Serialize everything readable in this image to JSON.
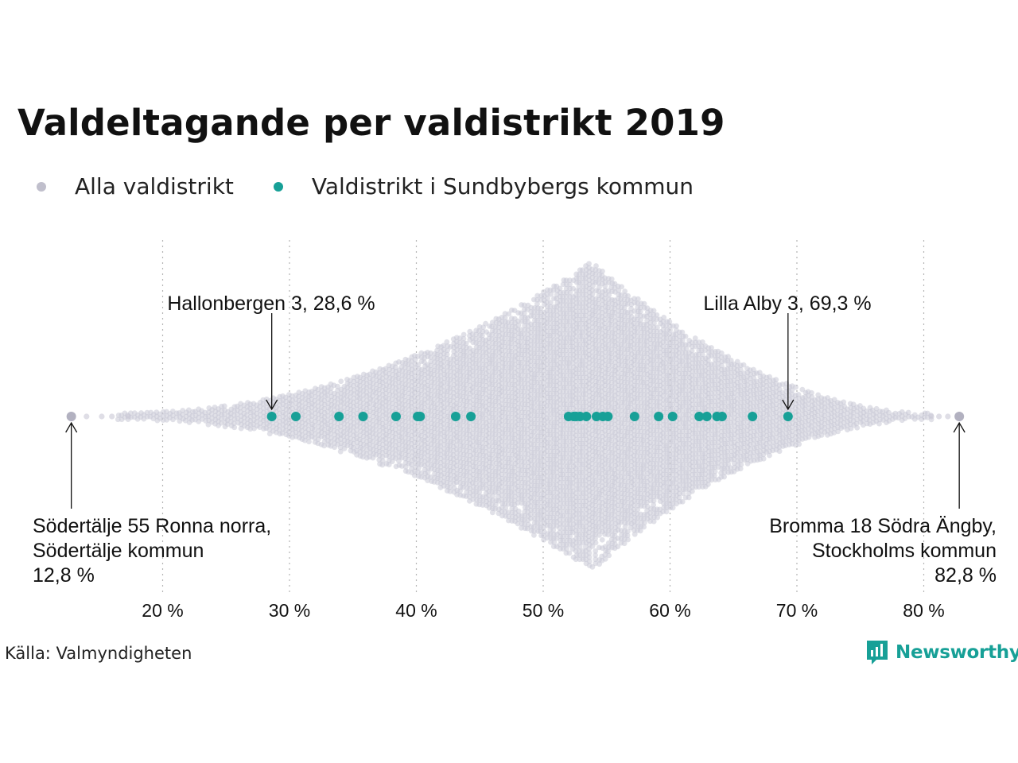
{
  "chart_data": {
    "type": "scatter",
    "title": "Valdeltagande per valdistrikt 2019",
    "xlim": [
      12,
      84
    ],
    "x_ticks": [
      {
        "value": 20,
        "label": "20 %"
      },
      {
        "value": 30,
        "label": "30 %"
      },
      {
        "value": 40,
        "label": "40 %"
      },
      {
        "value": 50,
        "label": "50 %"
      },
      {
        "value": 60,
        "label": "60 %"
      },
      {
        "value": 70,
        "label": "70 %"
      },
      {
        "value": 80,
        "label": "80 %"
      }
    ],
    "grid": "vertical dotted",
    "legend_position": "top-left",
    "series": [
      {
        "name": "Alla valdistrikt",
        "color": "#c9c8d6",
        "extremes": [
          12.8,
          82.8
        ]
      },
      {
        "name": "Valdistrikt i Sundbybergs kommun",
        "color": "#17a097",
        "values": [
          28.6,
          30.5,
          33.9,
          35.8,
          38.4,
          40.1,
          40.3,
          43.1,
          44.3,
          52.0,
          52.4,
          52.6,
          52.9,
          53.4,
          54.2,
          54.7,
          55.1,
          57.2,
          59.1,
          60.2,
          62.3,
          62.9,
          63.7,
          64.1,
          66.5,
          69.3
        ]
      }
    ],
    "annotations": [
      {
        "id": "hallonbergen",
        "x": 28.6,
        "lines": [
          "Hallonbergen 3, 28,6 %"
        ]
      },
      {
        "id": "lilla-alby",
        "x": 69.3,
        "lines": [
          "Lilla Alby 3, 69,3 %"
        ]
      },
      {
        "id": "sodertalje",
        "x": 12.8,
        "lines": [
          "Södertälje 55 Ronna norra,",
          "Södertälje kommun",
          "12,8 %"
        ]
      },
      {
        "id": "bromma",
        "x": 82.8,
        "lines": [
          "Bromma 18 Södra Ängby,",
          "Stockholms kommun",
          "82,8 %"
        ]
      }
    ]
  },
  "footer": {
    "source": "Källa: Valmyndigheten",
    "brand": "Newsworthy"
  }
}
